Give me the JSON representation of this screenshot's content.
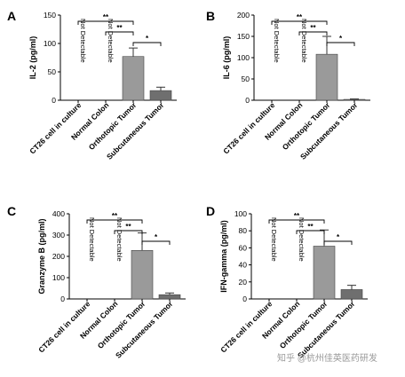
{
  "chart_data": [
    {
      "type": "bar",
      "panel": "A",
      "ylabel": "IL-2 (pg/ml)",
      "ylim": [
        0,
        150
      ],
      "yticks": [
        0,
        50,
        100,
        150
      ],
      "categories": [
        "CT26 cell in culture",
        "Normal Colon",
        "Orthotopic Tumor",
        "Subcutaneous Tumor"
      ],
      "values": [
        null,
        null,
        77,
        17
      ],
      "errors": [
        null,
        null,
        15,
        6
      ],
      "bar_colors": [
        "#9a9a9a",
        "#9a9a9a",
        "#9a9a9a",
        "#6f6f6f"
      ],
      "not_detected_label": "Not Detectable",
      "significance": [
        {
          "from": 0,
          "to": 2,
          "label": "**"
        },
        {
          "from": 1,
          "to": 2,
          "label": "**"
        },
        {
          "from": 2,
          "to": 3,
          "label": "*"
        }
      ]
    },
    {
      "type": "bar",
      "panel": "B",
      "ylabel": "IL-6 (pg/ml)",
      "ylim": [
        0,
        200
      ],
      "yticks": [
        0,
        50,
        100,
        150,
        200
      ],
      "categories": [
        "CT26 cell in culture",
        "Normal Colon",
        "Orthotopic Tumor",
        "Subcutaneous Tumor"
      ],
      "values": [
        null,
        null,
        108,
        2
      ],
      "errors": [
        null,
        null,
        42,
        1
      ],
      "bar_colors": [
        "#9a9a9a",
        "#9a9a9a",
        "#9a9a9a",
        "#6f6f6f"
      ],
      "not_detected_label": "Not Detectable",
      "significance": [
        {
          "from": 0,
          "to": 2,
          "label": "**"
        },
        {
          "from": 1,
          "to": 2,
          "label": "**"
        },
        {
          "from": 2,
          "to": 3,
          "label": "*"
        }
      ]
    },
    {
      "type": "bar",
      "panel": "C",
      "ylabel": "Granzyme B (pg/ml)",
      "ylim": [
        0,
        400
      ],
      "yticks": [
        0,
        100,
        200,
        300,
        400
      ],
      "categories": [
        "CT26 cell in culture",
        "Normal Colon",
        "Orthotopic Tumor",
        "Subcutaneous Tumor"
      ],
      "values": [
        null,
        null,
        228,
        20
      ],
      "errors": [
        null,
        null,
        82,
        8
      ],
      "bar_colors": [
        "#9a9a9a",
        "#9a9a9a",
        "#9a9a9a",
        "#6f6f6f"
      ],
      "not_detected_label": "Not Detectable",
      "significance": [
        {
          "from": 0,
          "to": 2,
          "label": "**"
        },
        {
          "from": 1,
          "to": 2,
          "label": "**"
        },
        {
          "from": 2,
          "to": 3,
          "label": "*"
        }
      ]
    },
    {
      "type": "bar",
      "panel": "D",
      "ylabel": "IFN-gamma (pg/ml)",
      "ylim": [
        0,
        100
      ],
      "yticks": [
        0,
        20,
        40,
        60,
        80,
        100
      ],
      "categories": [
        "CT26 cell in culture",
        "Normal Colon",
        "Orthotopic Tumor",
        "Subcutaneous Tumor"
      ],
      "values": [
        null,
        null,
        62,
        11
      ],
      "errors": [
        null,
        null,
        19,
        5
      ],
      "bar_colors": [
        "#9a9a9a",
        "#9a9a9a",
        "#9a9a9a",
        "#6f6f6f"
      ],
      "not_detected_label": "Not Detectable",
      "significance": [
        {
          "from": 0,
          "to": 2,
          "label": "**"
        },
        {
          "from": 1,
          "to": 2,
          "label": "**"
        },
        {
          "from": 2,
          "to": 3,
          "label": "*"
        }
      ]
    }
  ],
  "watermark": "知乎 @杭州佳英医药研发"
}
